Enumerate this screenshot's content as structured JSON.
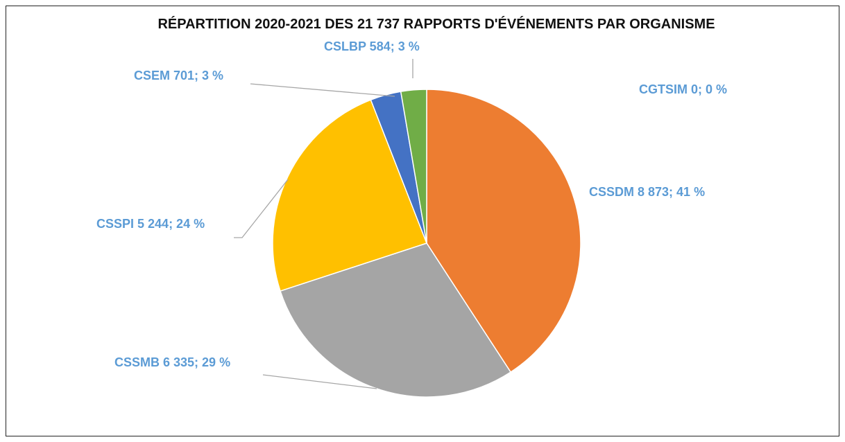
{
  "chart_data": {
    "type": "pie",
    "title": "RÉPARTITION 2020-2021 DES 21 737  RAPPORTS D'ÉVÉNEMENTS PAR ORGANISME",
    "label_color": "#5B9BD5",
    "leader_color": "#A6A6A6",
    "slices": [
      {
        "name": "CSSDM",
        "value": 8873,
        "label": "CSSDM  8 873; 41 %",
        "color": "#ED7D31"
      },
      {
        "name": "CSSMB",
        "value": 6335,
        "label": "CSSMB 6 335; 29 %",
        "color": "#A5A5A5"
      },
      {
        "name": "CSSPI",
        "value": 5244,
        "label": "CSSPI  5 244; 24 %",
        "color": "#FFC000"
      },
      {
        "name": "CSEM",
        "value": 701,
        "label": "CSEM  701; 3 %",
        "color": "#4472C4"
      },
      {
        "name": "CSLBP",
        "value": 584,
        "label": "CSLBP  584; 3 %",
        "color": "#70AD47"
      },
      {
        "name": "CGTSIM",
        "value": 0,
        "label": "CGTSIM 0; 0 %",
        "color": "#264478"
      }
    ]
  }
}
